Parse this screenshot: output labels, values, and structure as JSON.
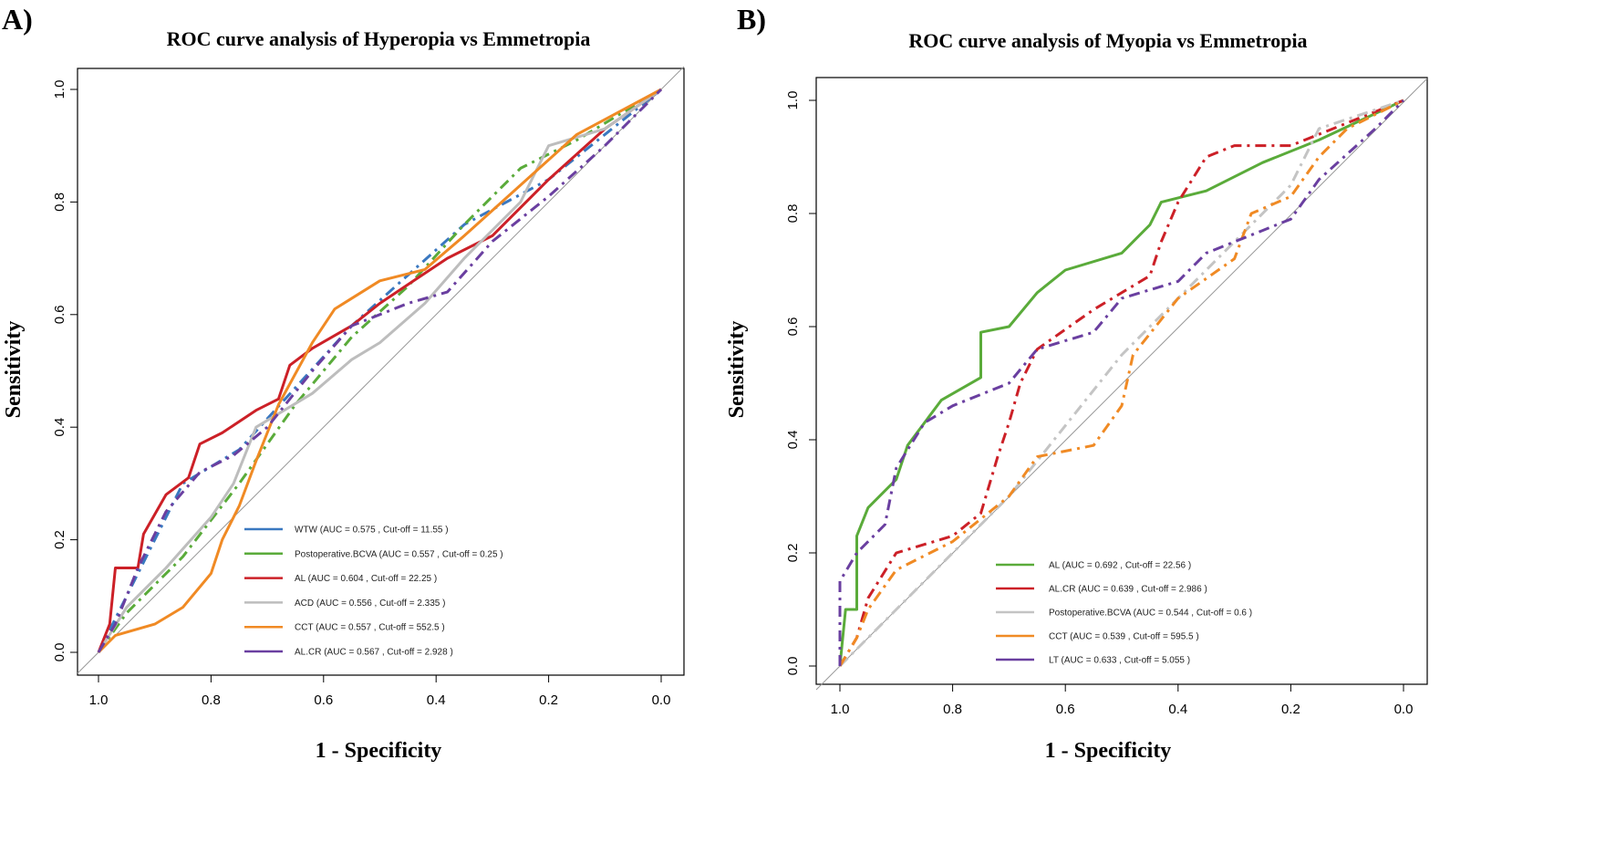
{
  "chart_data": [
    {
      "type": "line",
      "panel_label": "A)",
      "title": "ROC curve analysis of Hyperopia vs Emmetropia",
      "xlabel": "1 - Specificity",
      "ylabel": "Sensitivity",
      "xlim": [
        1.0,
        0.0
      ],
      "ylim": [
        0.0,
        1.0
      ],
      "xticks": [
        "1.0",
        "0.8",
        "0.6",
        "0.4",
        "0.2",
        "0.0"
      ],
      "yticks": [
        "0.0",
        "0.2",
        "0.4",
        "0.6",
        "0.8",
        "1.0"
      ],
      "legend_position": "bottom-center",
      "series": [
        {
          "name": "WTW (AUC = 0.575 , Cut-off = 11.55 )",
          "color": "#3a78c0",
          "dash": true,
          "points": [
            [
              1,
              0
            ],
            [
              0.95,
              0.1
            ],
            [
              0.9,
              0.2
            ],
            [
              0.85,
              0.3
            ],
            [
              0.75,
              0.36
            ],
            [
              0.65,
              0.47
            ],
            [
              0.55,
              0.58
            ],
            [
              0.45,
              0.67
            ],
            [
              0.35,
              0.76
            ],
            [
              0.2,
              0.84
            ],
            [
              0.1,
              0.92
            ],
            [
              0,
              1
            ]
          ]
        },
        {
          "name": "Postoperative.BCVA (AUC = 0.557 , Cut-off = 0.25 )",
          "color": "#5aab3a",
          "dash": true,
          "points": [
            [
              1,
              0
            ],
            [
              0.95,
              0.07
            ],
            [
              0.85,
              0.17
            ],
            [
              0.75,
              0.3
            ],
            [
              0.65,
              0.44
            ],
            [
              0.55,
              0.56
            ],
            [
              0.45,
              0.65
            ],
            [
              0.35,
              0.76
            ],
            [
              0.25,
              0.86
            ],
            [
              0.15,
              0.91
            ],
            [
              0,
              1
            ]
          ]
        },
        {
          "name": "AL (AUC = 0.604 , Cut-off = 22.25 )",
          "color": "#cc2027",
          "dash": false,
          "points": [
            [
              1,
              0
            ],
            [
              0.98,
              0.05
            ],
            [
              0.97,
              0.15
            ],
            [
              0.93,
              0.15
            ],
            [
              0.92,
              0.21
            ],
            [
              0.88,
              0.28
            ],
            [
              0.84,
              0.31
            ],
            [
              0.82,
              0.37
            ],
            [
              0.78,
              0.39
            ],
            [
              0.72,
              0.43
            ],
            [
              0.68,
              0.45
            ],
            [
              0.66,
              0.51
            ],
            [
              0.62,
              0.54
            ],
            [
              0.55,
              0.58
            ],
            [
              0.5,
              0.62
            ],
            [
              0.44,
              0.66
            ],
            [
              0.38,
              0.7
            ],
            [
              0.3,
              0.74
            ],
            [
              0.2,
              0.84
            ],
            [
              0.1,
              0.93
            ],
            [
              0,
              1
            ]
          ]
        },
        {
          "name": "ACD (AUC = 0.556 , Cut-off = 2.335 )",
          "color": "#bdbdbd",
          "dash": false,
          "points": [
            [
              1,
              0
            ],
            [
              0.95,
              0.08
            ],
            [
              0.88,
              0.15
            ],
            [
              0.8,
              0.24
            ],
            [
              0.76,
              0.3
            ],
            [
              0.72,
              0.4
            ],
            [
              0.62,
              0.46
            ],
            [
              0.55,
              0.52
            ],
            [
              0.5,
              0.55
            ],
            [
              0.42,
              0.62
            ],
            [
              0.35,
              0.7
            ],
            [
              0.25,
              0.8
            ],
            [
              0.2,
              0.9
            ],
            [
              0.1,
              0.93
            ],
            [
              0,
              1
            ]
          ]
        },
        {
          "name": "CCT (AUC = 0.557 , Cut-off = 552.5 )",
          "color": "#f08a24",
          "dash": false,
          "points": [
            [
              1,
              0
            ],
            [
              0.97,
              0.03
            ],
            [
              0.9,
              0.05
            ],
            [
              0.85,
              0.08
            ],
            [
              0.8,
              0.14
            ],
            [
              0.78,
              0.2
            ],
            [
              0.75,
              0.26
            ],
            [
              0.72,
              0.34
            ],
            [
              0.68,
              0.44
            ],
            [
              0.62,
              0.55
            ],
            [
              0.58,
              0.61
            ],
            [
              0.5,
              0.66
            ],
            [
              0.42,
              0.68
            ],
            [
              0.35,
              0.74
            ],
            [
              0.25,
              0.83
            ],
            [
              0.15,
              0.92
            ],
            [
              0,
              1
            ]
          ]
        },
        {
          "name": "AL.CR (AUC = 0.567 , Cut-off = 2.928 )",
          "color": "#6a3fa0",
          "dash": true,
          "points": [
            [
              1,
              0
            ],
            [
              0.97,
              0.05
            ],
            [
              0.93,
              0.15
            ],
            [
              0.88,
              0.25
            ],
            [
              0.82,
              0.32
            ],
            [
              0.76,
              0.35
            ],
            [
              0.7,
              0.4
            ],
            [
              0.62,
              0.5
            ],
            [
              0.55,
              0.58
            ],
            [
              0.45,
              0.62
            ],
            [
              0.38,
              0.64
            ],
            [
              0.3,
              0.73
            ],
            [
              0.2,
              0.81
            ],
            [
              0.1,
              0.9
            ],
            [
              0,
              1
            ]
          ]
        }
      ]
    },
    {
      "type": "line",
      "panel_label": "B)",
      "title": "ROC curve analysis of Myopia vs Emmetropia",
      "xlabel": "1 - Specificity",
      "ylabel": "Sensitivity",
      "xlim": [
        1.0,
        0.0
      ],
      "ylim": [
        0.0,
        1.0
      ],
      "xticks": [
        "1.0",
        "0.8",
        "0.6",
        "0.4",
        "0.2",
        "0.0"
      ],
      "yticks": [
        "0.0",
        "0.2",
        "0.4",
        "0.6",
        "0.8",
        "1.0"
      ],
      "legend_position": "bottom-center",
      "series": [
        {
          "name": "AL (AUC = 0.692 , Cut-off = 22.56 )",
          "color": "#5aab3a",
          "dash": false,
          "points": [
            [
              1,
              0
            ],
            [
              0.99,
              0.1
            ],
            [
              0.97,
              0.1
            ],
            [
              0.97,
              0.23
            ],
            [
              0.95,
              0.28
            ],
            [
              0.9,
              0.33
            ],
            [
              0.88,
              0.39
            ],
            [
              0.82,
              0.47
            ],
            [
              0.75,
              0.51
            ],
            [
              0.75,
              0.59
            ],
            [
              0.7,
              0.6
            ],
            [
              0.65,
              0.66
            ],
            [
              0.6,
              0.7
            ],
            [
              0.5,
              0.73
            ],
            [
              0.45,
              0.78
            ],
            [
              0.43,
              0.82
            ],
            [
              0.35,
              0.84
            ],
            [
              0.25,
              0.89
            ],
            [
              0.15,
              0.93
            ],
            [
              0,
              1
            ]
          ]
        },
        {
          "name": "AL.CR (AUC = 0.639 , Cut-off = 2.986 )",
          "color": "#cc2027",
          "dash": true,
          "points": [
            [
              1,
              0
            ],
            [
              0.97,
              0.05
            ],
            [
              0.95,
              0.12
            ],
            [
              0.9,
              0.2
            ],
            [
              0.8,
              0.23
            ],
            [
              0.75,
              0.27
            ],
            [
              0.72,
              0.37
            ],
            [
              0.7,
              0.43
            ],
            [
              0.68,
              0.5
            ],
            [
              0.65,
              0.56
            ],
            [
              0.55,
              0.63
            ],
            [
              0.45,
              0.69
            ],
            [
              0.43,
              0.75
            ],
            [
              0.4,
              0.82
            ],
            [
              0.35,
              0.9
            ],
            [
              0.3,
              0.92
            ],
            [
              0.2,
              0.92
            ],
            [
              0.1,
              0.96
            ],
            [
              0,
              1
            ]
          ]
        },
        {
          "name": "Postoperative.BCVA (AUC = 0.544 , Cut-off = 0.6 )",
          "color": "#c4c4c4",
          "dash": true,
          "points": [
            [
              1,
              0
            ],
            [
              0.9,
              0.1
            ],
            [
              0.7,
              0.3
            ],
            [
              0.5,
              0.55
            ],
            [
              0.3,
              0.75
            ],
            [
              0.2,
              0.85
            ],
            [
              0.15,
              0.95
            ],
            [
              0,
              1
            ]
          ]
        },
        {
          "name": "CCT (AUC = 0.539 , Cut-off = 595.5 )",
          "color": "#f08a24",
          "dash": true,
          "points": [
            [
              1,
              0
            ],
            [
              0.97,
              0.05
            ],
            [
              0.95,
              0.1
            ],
            [
              0.9,
              0.17
            ],
            [
              0.8,
              0.22
            ],
            [
              0.7,
              0.3
            ],
            [
              0.65,
              0.37
            ],
            [
              0.55,
              0.39
            ],
            [
              0.5,
              0.46
            ],
            [
              0.48,
              0.55
            ],
            [
              0.4,
              0.65
            ],
            [
              0.3,
              0.72
            ],
            [
              0.27,
              0.8
            ],
            [
              0.2,
              0.83
            ],
            [
              0.15,
              0.9
            ],
            [
              0.1,
              0.95
            ],
            [
              0,
              1
            ]
          ]
        },
        {
          "name": "LT (AUC = 0.633 , Cut-off = 5.055 )",
          "color": "#6a3fa0",
          "dash": true,
          "points": [
            [
              1,
              0
            ],
            [
              1,
              0.15
            ],
            [
              0.97,
              0.2
            ],
            [
              0.92,
              0.25
            ],
            [
              0.9,
              0.35
            ],
            [
              0.85,
              0.43
            ],
            [
              0.8,
              0.46
            ],
            [
              0.7,
              0.5
            ],
            [
              0.65,
              0.56
            ],
            [
              0.55,
              0.59
            ],
            [
              0.5,
              0.65
            ],
            [
              0.4,
              0.68
            ],
            [
              0.35,
              0.73
            ],
            [
              0.2,
              0.79
            ],
            [
              0.15,
              0.86
            ],
            [
              0.05,
              0.95
            ],
            [
              0,
              1
            ]
          ]
        }
      ]
    }
  ]
}
